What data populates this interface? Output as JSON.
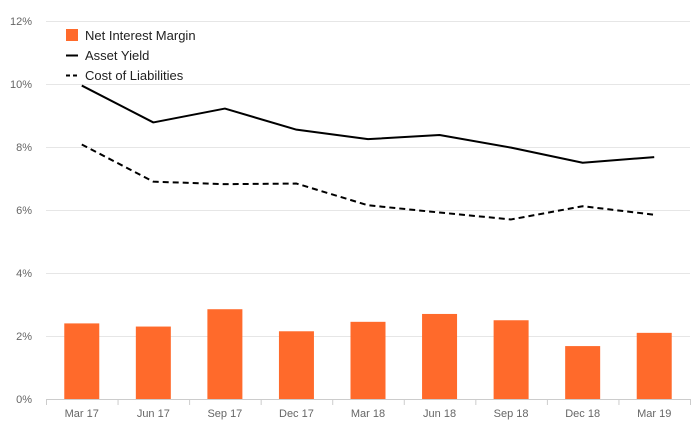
{
  "chart_data": {
    "type": "bar",
    "categories": [
      "Mar 17",
      "Jun 17",
      "Sep 17",
      "Dec 17",
      "Mar 18",
      "Jun 18",
      "Sep 18",
      "Dec 18",
      "Mar 19"
    ],
    "series": [
      {
        "name": "Net Interest Margin",
        "type": "bar",
        "color": "#ff6a2b",
        "values": [
          2.4,
          2.3,
          2.85,
          2.15,
          2.45,
          2.7,
          2.5,
          1.68,
          2.1
        ]
      },
      {
        "name": "Asset Yield",
        "type": "line",
        "style": "solid",
        "color": "#000000",
        "values": [
          9.95,
          8.78,
          9.22,
          8.55,
          8.25,
          8.38,
          7.98,
          7.5,
          7.68
        ]
      },
      {
        "name": "Cost of Liabilities",
        "type": "line",
        "style": "dashed",
        "color": "#000000",
        "values": [
          8.08,
          6.9,
          6.82,
          6.84,
          6.15,
          5.92,
          5.7,
          6.12,
          5.85
        ]
      }
    ],
    "ylim": [
      0,
      12
    ],
    "yticks": [
      "0%",
      "2%",
      "4%",
      "6%",
      "8%",
      "10%",
      "12%"
    ],
    "ytick_values": [
      0,
      2,
      4,
      6,
      8,
      10,
      12
    ],
    "grid": true,
    "legend_position": "top-left"
  }
}
